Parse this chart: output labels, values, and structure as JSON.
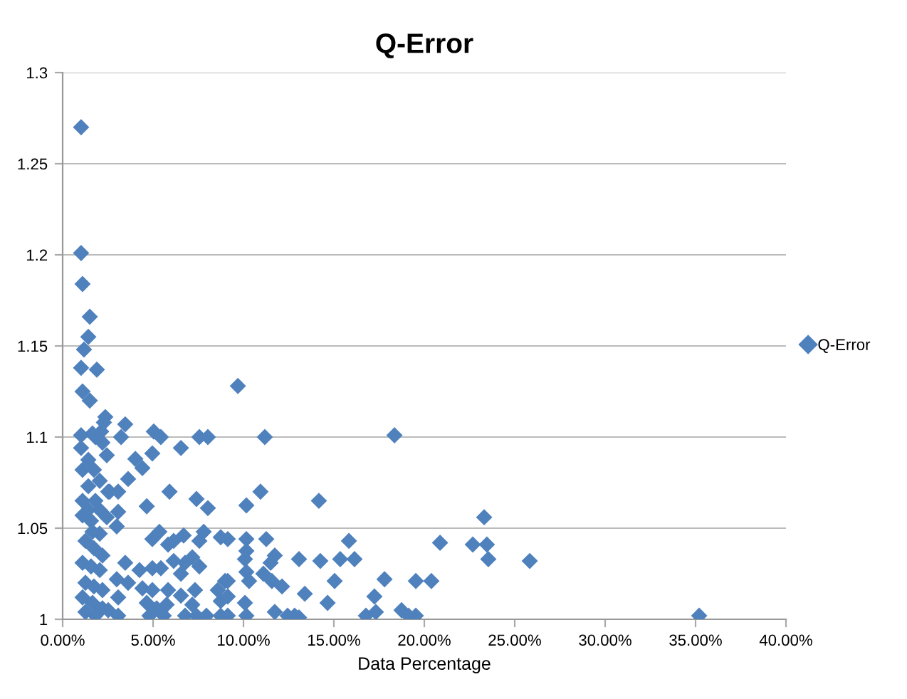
{
  "chart_data": {
    "type": "scatter",
    "title": "Q-Error",
    "xlabel": "Data Percentage",
    "xlim": [
      0,
      40
    ],
    "xticks": [
      {
        "value": 0,
        "label": "0.00%"
      },
      {
        "value": 5,
        "label": "5.00%"
      },
      {
        "value": 10,
        "label": "10.00%"
      },
      {
        "value": 15,
        "label": "15.00%"
      },
      {
        "value": 20,
        "label": "20.00%"
      },
      {
        "value": 25,
        "label": "25.00%"
      },
      {
        "value": 30,
        "label": "30.00%"
      },
      {
        "value": 35,
        "label": "35.00%"
      },
      {
        "value": 40,
        "label": "40.00%"
      }
    ],
    "ylim": [
      1,
      1.3
    ],
    "yticks": [
      1,
      1.05,
      1.1,
      1.15,
      1.2,
      1.25,
      1.3
    ],
    "grid": "y",
    "legend": "right",
    "marker": "diamond",
    "series": [
      {
        "name": "Q-Error",
        "color": "#4f81bd",
        "x": [
          1.02,
          1.02,
          1.1,
          1.5,
          1.42,
          1.18,
          1.02,
          1.89,
          1.1,
          1.5,
          1.02,
          1.81,
          1.02,
          2.13,
          2.36,
          2.28,
          2.44,
          2.2,
          1.42,
          1.1,
          1.73,
          1.42,
          1.1,
          1.81,
          2.52,
          1.42,
          2.05,
          1.1,
          1.57,
          2.44,
          2.05,
          1.26,
          1.73,
          2.2,
          1.1,
          1.57,
          2.05,
          1.26,
          1.73,
          2.2,
          1.1,
          1.65,
          2.2,
          1.26,
          1.81,
          2.52,
          3.46,
          1.65,
          3.23,
          5.04,
          5.43,
          7.56,
          8.03,
          6.54,
          4.02,
          4.96,
          4.41,
          2.05,
          3.62,
          5.91,
          2.6,
          3.07,
          7.4,
          8.03,
          4.65,
          3.07,
          2.99,
          1.65,
          5.35,
          4.96,
          5.83,
          6.14,
          6.69,
          7.56,
          7.8,
          8.74,
          3.46,
          4.25,
          4.96,
          5.43,
          6.14,
          6.77,
          7.17,
          7.56,
          8.98,
          6.54,
          2.99,
          3.62,
          4.41,
          4.96,
          5.83,
          6.54,
          7.32,
          8.58,
          3.07,
          4.65,
          5.2,
          5.75,
          7.17,
          8.74,
          3.07,
          4.8,
          5.59,
          6.77,
          7.4,
          7.95,
          8.74,
          9.69,
          11.18,
          18.35,
          10.94,
          10.16,
          14.17,
          23.31,
          9.13,
          10.16,
          11.26,
          15.83,
          20.87,
          22.68,
          23.46,
          10.16,
          11.73,
          10.08,
          11.5,
          13.07,
          14.25,
          15.35,
          16.14,
          23.54,
          10.16,
          11.1,
          11.57,
          10.31,
          9.13,
          12.13,
          15.04,
          17.8,
          19.53,
          20.39,
          13.39,
          9.13,
          10.08,
          14.65,
          17.24,
          11.73,
          12.44,
          13.07,
          12.83,
          9.13,
          10.16,
          16.77,
          17.32,
          18.74,
          19.53,
          19.13,
          25.83,
          35.2
        ],
        "values": [
          1.27,
          1.201,
          1.184,
          1.166,
          1.155,
          1.148,
          1.138,
          1.137,
          1.125,
          1.12,
          1.101,
          1.1,
          1.094,
          1.103,
          1.111,
          1.108,
          1.09,
          1.097,
          1.0875,
          1.082,
          1.082,
          1.073,
          1.065,
          1.065,
          1.07,
          1.06,
          1.06,
          1.057,
          1.054,
          1.056,
          1.047,
          1.043,
          1.039,
          1.035,
          1.031,
          1.029,
          1.027,
          1.02,
          1.018,
          1.016,
          1.012,
          1.009,
          1.006,
          1.004,
          1.002,
          1.005,
          1.107,
          1.102,
          1.1,
          1.103,
          1.1,
          1.1,
          1.1,
          1.094,
          1.088,
          1.091,
          1.083,
          1.076,
          1.077,
          1.07,
          1.07,
          1.07,
          1.066,
          1.061,
          1.062,
          1.059,
          1.051,
          1.048,
          1.048,
          1.044,
          1.041,
          1.043,
          1.046,
          1.043,
          1.048,
          1.045,
          1.031,
          1.027,
          1.028,
          1.028,
          1.032,
          1.031,
          1.034,
          1.029,
          1.021,
          1.025,
          1.022,
          1.02,
          1.017,
          1.016,
          1.016,
          1.013,
          1.016,
          1.016,
          1.012,
          1.009,
          1.006,
          1.008,
          1.008,
          1.01,
          1.002,
          1.002,
          1.002,
          1.002,
          1.002,
          1.002,
          1.002,
          1.128,
          1.1,
          1.101,
          1.07,
          1.0625,
          1.065,
          1.056,
          1.044,
          1.044,
          1.044,
          1.043,
          1.042,
          1.041,
          1.041,
          1.0375,
          1.035,
          1.033,
          1.031,
          1.033,
          1.032,
          1.033,
          1.033,
          1.033,
          1.026,
          1.025,
          1.021,
          1.021,
          1.021,
          1.018,
          1.021,
          1.022,
          1.021,
          1.021,
          1.014,
          1.0125,
          1.009,
          1.009,
          1.0125,
          1.004,
          1.002,
          1.001,
          1.002,
          1.002,
          1.002,
          1.002,
          1.004,
          1.005,
          1.002,
          1.002,
          1.032,
          1.002
        ]
      }
    ]
  }
}
